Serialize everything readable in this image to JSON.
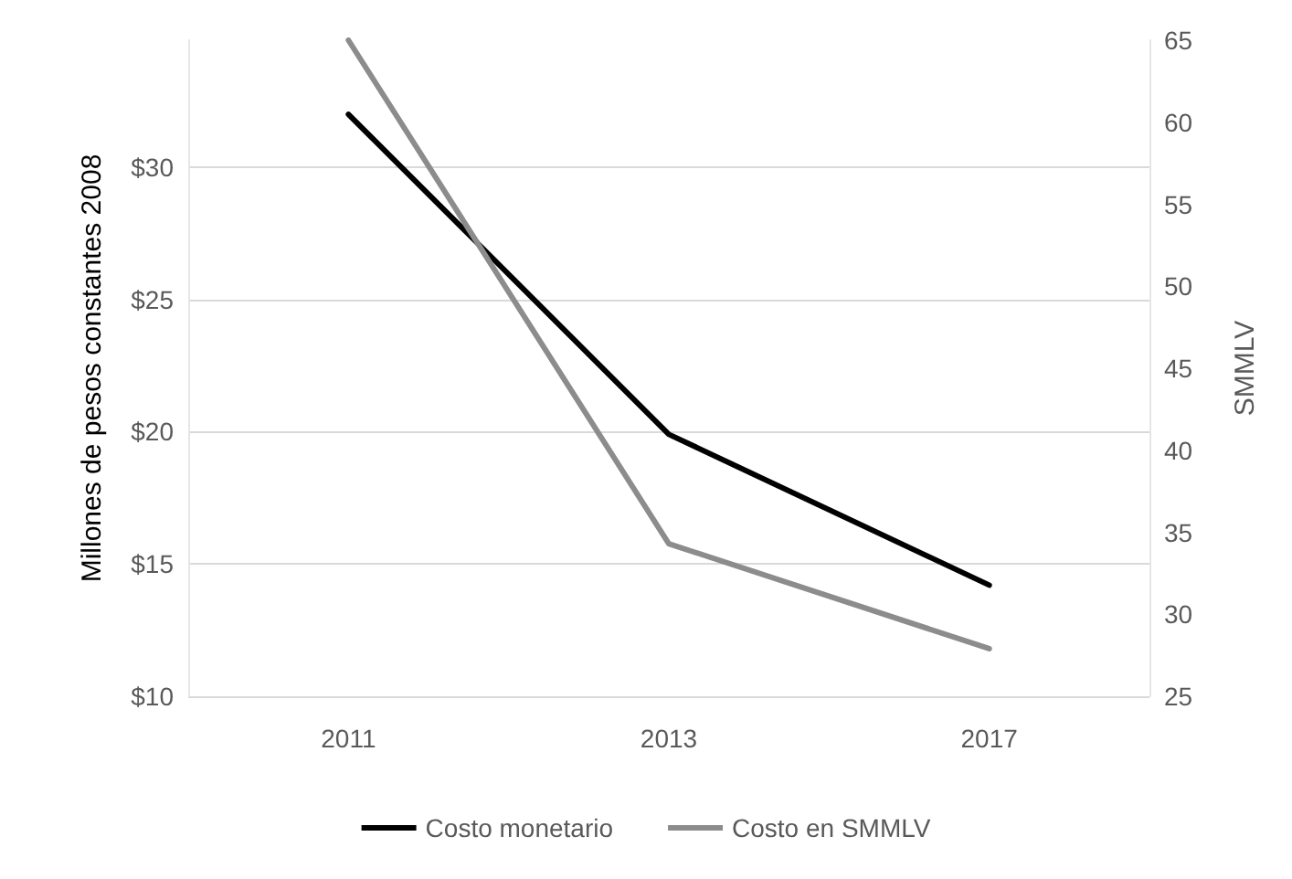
{
  "chart_data": {
    "type": "line",
    "ylabel": "Millones de pesos constantes 2008",
    "y2label": "SMMLV",
    "categories": [
      "2011",
      "2013",
      "2017"
    ],
    "series": [
      {
        "name": "Costo monetario",
        "color": "#000000",
        "values": [
          32,
          19.9,
          14.2
        ]
      },
      {
        "name": "Costo en SMMLV",
        "color": "#8c8c8c",
        "values": [
          65,
          34.3,
          27.9
        ],
        "axis": "y2"
      }
    ],
    "ylim": [
      10,
      34.8
    ],
    "yticks": [
      {
        "value": 10,
        "label": "$10"
      },
      {
        "value": 15,
        "label": "$15"
      },
      {
        "value": 20,
        "label": "$20"
      },
      {
        "value": 25,
        "label": "$25"
      },
      {
        "value": 30,
        "label": "$30"
      }
    ],
    "y2lim": [
      25,
      65
    ],
    "y2ticks": [
      25,
      30,
      35,
      40,
      45,
      50,
      55,
      60,
      65
    ],
    "grid": "y",
    "legend": "bottom",
    "marker": "none",
    "line_style": "solid"
  }
}
